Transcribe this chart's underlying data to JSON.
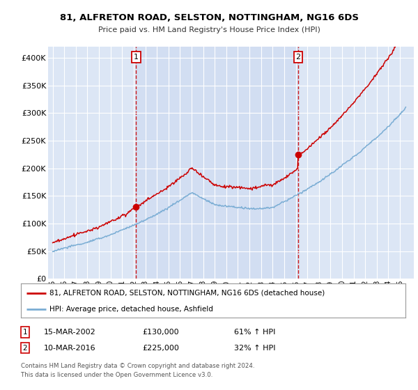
{
  "title1": "81, ALFRETON ROAD, SELSTON, NOTTINGHAM, NG16 6DS",
  "title2": "Price paid vs. HM Land Registry's House Price Index (HPI)",
  "legend_red": "81, ALFRETON ROAD, SELSTON, NOTTINGHAM, NG16 6DS (detached house)",
  "legend_blue": "HPI: Average price, detached house, Ashfield",
  "sale1_date": "15-MAR-2002",
  "sale1_price": "£130,000",
  "sale1_hpi": "61% ↑ HPI",
  "sale1_year": 2002.2,
  "sale1_value": 130000,
  "sale2_date": "10-MAR-2016",
  "sale2_price": "£225,000",
  "sale2_hpi": "32% ↑ HPI",
  "sale2_year": 2016.2,
  "sale2_value": 225000,
  "footer": "Contains HM Land Registry data © Crown copyright and database right 2024.\nThis data is licensed under the Open Government Licence v3.0.",
  "ylim": [
    0,
    420000
  ],
  "yticks": [
    0,
    50000,
    100000,
    150000,
    200000,
    250000,
    300000,
    350000,
    400000
  ],
  "bg_color": "#dce6f5",
  "highlight_color": "#ccdaf0",
  "grid_color": "#ffffff",
  "red_color": "#cc0000",
  "blue_color": "#7aadd4",
  "xstart": 1995,
  "xend": 2025.5
}
